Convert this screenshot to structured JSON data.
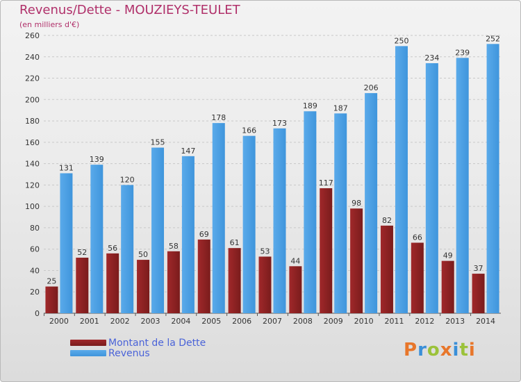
{
  "title": "Revenus/Dette - MOUZIEYS-TEULET",
  "subtitle": "(en milliers d'€)",
  "legend": {
    "dette_label": "Montant de la Dette",
    "revenus_label": "Revenus"
  },
  "logo": {
    "text": "Proxiti",
    "letters": [
      "P",
      "r",
      "o",
      "x",
      "i",
      "t",
      "i"
    ]
  },
  "colors": {
    "title": "#b0306a",
    "dette": "#7a1c1c",
    "dette_light": "#a0282a",
    "revenus": "#3f95dc",
    "revenus_light": "#5aaaea",
    "legend_text": "#4a63d8",
    "grid": "#c8c8c8",
    "axis_text": "#333333",
    "logo": [
      "#e8762a",
      "#3a8fd8",
      "#9bc23a",
      "#e8762a",
      "#3a8fd8",
      "#9bc23a",
      "#e8762a"
    ]
  },
  "chart_data": {
    "type": "bar",
    "categories": [
      "2000",
      "2001",
      "2002",
      "2003",
      "2004",
      "2005",
      "2006",
      "2007",
      "2008",
      "2009",
      "2010",
      "2011",
      "2012",
      "2013",
      "2014"
    ],
    "series": [
      {
        "name": "Montant de la Dette",
        "values": [
          25,
          52,
          56,
          50,
          58,
          69,
          61,
          53,
          44,
          117,
          98,
          82,
          66,
          49,
          37
        ]
      },
      {
        "name": "Revenus",
        "values": [
          131,
          139,
          120,
          155,
          147,
          178,
          166,
          173,
          189,
          187,
          206,
          250,
          234,
          239,
          252
        ]
      }
    ],
    "yticks": [
      "0",
      "20",
      "40",
      "60",
      "80",
      "100",
      "120",
      "140",
      "160",
      "180",
      "200",
      "220",
      "240",
      "260"
    ],
    "ylim": [
      0,
      260
    ],
    "grid": true,
    "legend_position": "bottom-left"
  }
}
